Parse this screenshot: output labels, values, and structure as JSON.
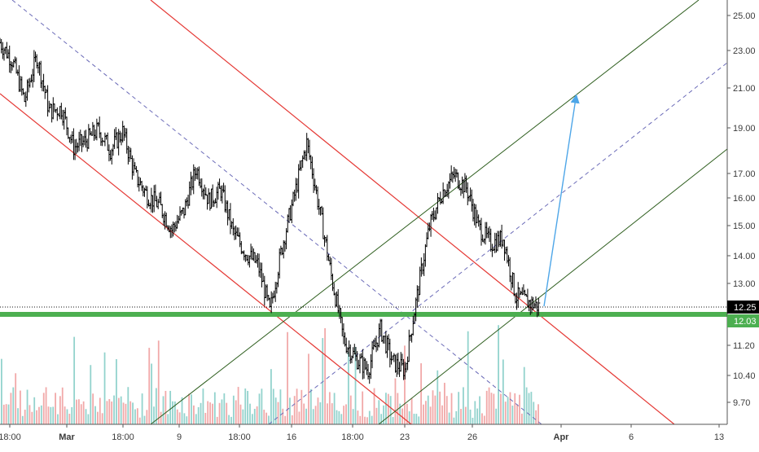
{
  "chart_data": {
    "type": "candlestick",
    "title": "",
    "xlabel": "",
    "ylabel": "",
    "y_scale": "log",
    "ylim": [
      9.2,
      25.8
    ],
    "grid": false,
    "x_tick_labels": [
      "18:00",
      "Mar",
      "18:00",
      "9",
      "18:00",
      "16",
      "18:00",
      "23",
      "26",
      "Apr",
      "6",
      "13"
    ],
    "y_tick_labels": [
      "25.00",
      "23.00",
      "21.00",
      "19.00",
      "17.00",
      "16.00",
      "15.00",
      "14.00",
      "13.00",
      "11.20",
      "10.40",
      "9.70"
    ],
    "price_labels": [
      {
        "text": "12.25",
        "value": 12.25,
        "style": "dotted-black"
      },
      {
        "text": "12.03",
        "value": 12.03,
        "style": "green-support"
      }
    ],
    "price_series_approx": [
      {
        "x": "Feb 26 18:00",
        "y": 23.4
      },
      {
        "x": "Feb 27",
        "y": 22.4
      },
      {
        "x": "Feb 27 12:00",
        "y": 20.3
      },
      {
        "x": "Feb 28",
        "y": 22.6
      },
      {
        "x": "Feb 28 12:00",
        "y": 19.8
      },
      {
        "x": "Feb 29",
        "y": 19.9
      },
      {
        "x": "Feb 29 12:00",
        "y": 18.1
      },
      {
        "x": "Mar 1",
        "y": 18.4
      },
      {
        "x": "Mar 2",
        "y": 18.9
      },
      {
        "x": "Mar 3",
        "y": 18.0
      },
      {
        "x": "Mar 4",
        "y": 18.8
      },
      {
        "x": "Mar 5",
        "y": 16.9
      },
      {
        "x": "Mar 6",
        "y": 16.1
      },
      {
        "x": "Mar 7",
        "y": 15.7
      },
      {
        "x": "Mar 8",
        "y": 14.8
      },
      {
        "x": "Mar 9",
        "y": 15.5
      },
      {
        "x": "Mar 10",
        "y": 17.2
      },
      {
        "x": "Mar 11",
        "y": 15.9
      },
      {
        "x": "Mar 12",
        "y": 16.3
      },
      {
        "x": "Mar 13",
        "y": 14.7
      },
      {
        "x": "Mar 14",
        "y": 14.0
      },
      {
        "x": "Mar 15",
        "y": 13.6
      },
      {
        "x": "Mar 16",
        "y": 12.1
      },
      {
        "x": "Mar 16 12:00",
        "y": 14.2
      },
      {
        "x": "Mar 17",
        "y": 16.1
      },
      {
        "x": "Mar 17 12:00",
        "y": 18.3
      },
      {
        "x": "Mar 18",
        "y": 15.6
      },
      {
        "x": "Mar 19",
        "y": 13.2
      },
      {
        "x": "Mar 19 12:00",
        "y": 11.3
      },
      {
        "x": "Mar 20",
        "y": 10.8
      },
      {
        "x": "Mar 21",
        "y": 10.5
      },
      {
        "x": "Mar 22",
        "y": 11.6
      },
      {
        "x": "Mar 23",
        "y": 10.7
      },
      {
        "x": "Mar 24",
        "y": 10.5
      },
      {
        "x": "Mar 24 12:00",
        "y": 12.6
      },
      {
        "x": "Mar 25",
        "y": 14.9
      },
      {
        "x": "Mar 25 12:00",
        "y": 16.2
      },
      {
        "x": "Mar 26",
        "y": 16.9
      },
      {
        "x": "Mar 26 12:00",
        "y": 16.4
      },
      {
        "x": "Mar 27",
        "y": 14.9
      },
      {
        "x": "Mar 27 12:00",
        "y": 14.3
      },
      {
        "x": "Mar 28",
        "y": 14.5
      },
      {
        "x": "Mar 29",
        "y": 12.6
      },
      {
        "x": "Mar 29 12:00",
        "y": 12.4
      },
      {
        "x": "Mar 30",
        "y": 12.25
      }
    ],
    "volume": "relative bars along bottom of chart, red and teal",
    "overlays": [
      {
        "kind": "descending parallel channel",
        "color": "#e53935"
      },
      {
        "kind": "descending channel midline",
        "color": "#6b6bb8",
        "style": "dashed"
      },
      {
        "kind": "ascending parallel channel",
        "color": "#2e5e1e"
      },
      {
        "kind": "ascending channel midline",
        "color": "#6b6bb8",
        "style": "dashed"
      },
      {
        "kind": "horizontal support line",
        "color": "#4caf50",
        "value": 12.03
      },
      {
        "kind": "arrow projection",
        "color": "#4ea6e8",
        "to_value": 20.5
      }
    ],
    "colors": {
      "up_volume": "#80cbc4",
      "down_volume": "#ef9a9a",
      "candles": "#000000",
      "support": "#4caf50"
    }
  }
}
